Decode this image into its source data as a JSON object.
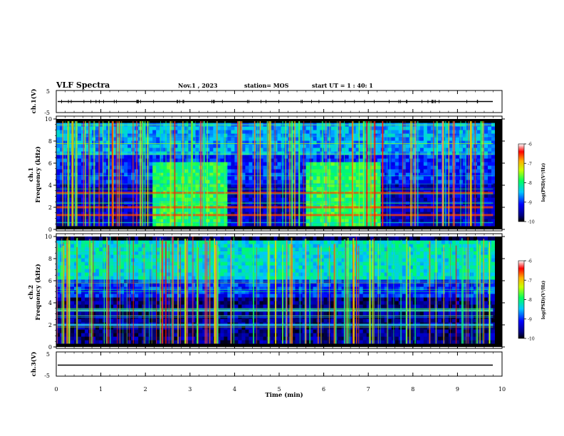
{
  "header": {
    "title": "VLF Spectra",
    "date": "Nov.1 , 2023",
    "station": "station= MOS",
    "start": "start UT = 1 : 40: 1"
  },
  "chart_data": [
    {
      "type": "line",
      "name": "ch1-waveform",
      "ylabel": "ch.1(V)",
      "ylim": [
        -5,
        5
      ],
      "yticks": [
        "5",
        "-5"
      ],
      "xlim": [
        0,
        10
      ],
      "level": 0
    },
    {
      "type": "heatmap",
      "name": "ch1-spectrogram",
      "ylabel_line1": "ch.1",
      "ylabel_line2": "Frequency (kHz)",
      "ylim": [
        0,
        10
      ],
      "yticks": [
        "0",
        "2",
        "4",
        "6",
        "8",
        "10"
      ],
      "xlim": [
        0,
        10
      ],
      "colorbar": {
        "label": "log(PSD)(V²/Hz)",
        "range": [
          -10,
          -6
        ],
        "ticks": [
          "-6",
          "-7",
          "-8",
          "-9",
          "-10"
        ]
      },
      "enhanced_intervals_min": [
        [
          2.1,
          3.8
        ],
        [
          5.55,
          7.2
        ]
      ],
      "persistent_lines_khz": [
        3.3,
        2.0,
        1.3
      ]
    },
    {
      "type": "heatmap",
      "name": "ch2-spectrogram",
      "ylabel_line1": "ch.2",
      "ylabel_line2": "Frequency (kHz)",
      "ylim": [
        0,
        10
      ],
      "yticks": [
        "0",
        "2",
        "4",
        "6",
        "8",
        "10"
      ],
      "xlim": [
        0,
        10
      ],
      "colorbar": {
        "label": "log(PSD)(V²/Hz)",
        "range": [
          -10,
          -6
        ],
        "ticks": [
          "-6",
          "-7",
          "-8",
          "-9",
          "-10"
        ]
      },
      "persistent_lines_khz": [
        2.0,
        3.3
      ]
    },
    {
      "type": "line",
      "name": "ch3-waveform",
      "ylabel": "ch.3(V)",
      "ylim": [
        -5,
        5
      ],
      "yticks": [
        "5",
        "-5"
      ],
      "xlim": [
        0,
        10
      ],
      "level": 0
    }
  ],
  "xaxis": {
    "label": "Time (min)",
    "ticks": [
      "0",
      "1",
      "2",
      "3",
      "4",
      "5",
      "6",
      "7",
      "8",
      "9",
      "10"
    ]
  }
}
